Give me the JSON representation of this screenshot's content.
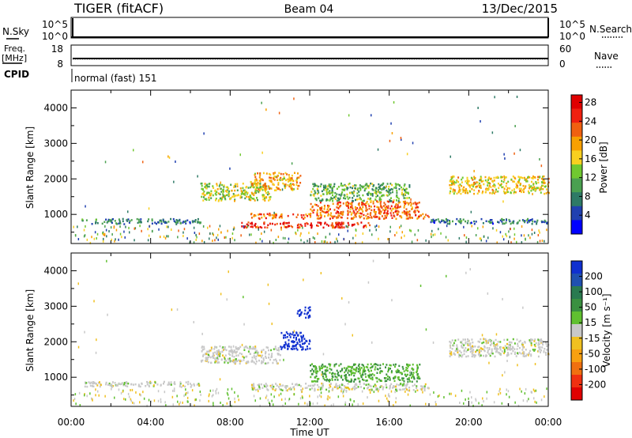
{
  "header": {
    "left": "TIGER (fitACF)",
    "center": "Beam 04",
    "right": "13/Dec/2015"
  },
  "params": {
    "nsky_label": "N.Sky",
    "freq_label_1": "Freq.",
    "freq_label_2": "[MHz]",
    "cpid_label": "CPID",
    "nsearch_label": "N.Search",
    "nave_label": "Nave",
    "nsky_ticks": [
      "10^5",
      "10^0"
    ],
    "nsearch_ticks": [
      "10^5",
      "10^0"
    ],
    "freq_ticks": [
      "18",
      "8"
    ],
    "nave_ticks": [
      "60",
      "0"
    ],
    "cpid_text": "normal (fast) 151"
  },
  "chart_data": [
    {
      "type": "heatmap",
      "title": "",
      "xlabel": "",
      "ylabel": "Slant Range [km]",
      "x_range_hours": [
        0,
        24
      ],
      "ylim": [
        180,
        4500
      ],
      "yticks": [
        1000,
        2000,
        3000,
        4000
      ],
      "colorbar": {
        "label": "Power [dB]",
        "ticks": [
          "4",
          "8",
          "12",
          "16",
          "20",
          "24",
          "28"
        ],
        "colors": [
          "#0000ff",
          "#2040b0",
          "#2e7a66",
          "#4aa050",
          "#70c830",
          "#f8d020",
          "#f8a000",
          "#f06010",
          "#f02010",
          "#e00000"
        ]
      },
      "regions": [
        {
          "t": [
            0.5,
            6.5
          ],
          "r": [
            750,
            900
          ],
          "value": 8
        },
        {
          "t": [
            6.5,
            10.0
          ],
          "r": [
            1400,
            1900
          ],
          "value": 16
        },
        {
          "t": [
            9.0,
            11.5
          ],
          "r": [
            1700,
            2200
          ],
          "value": 20
        },
        {
          "t": [
            9.0,
            18.0
          ],
          "r": [
            900,
            1050
          ],
          "value": 24
        },
        {
          "t": [
            8.5,
            15.0
          ],
          "r": [
            650,
            800
          ],
          "value": 28
        },
        {
          "t": [
            12.0,
            17.5
          ],
          "r": [
            1050,
            1400
          ],
          "value": 24
        },
        {
          "t": [
            12.0,
            17.0
          ],
          "r": [
            1400,
            1900
          ],
          "value": 12
        },
        {
          "t": [
            19.0,
            24.0
          ],
          "r": [
            1600,
            2100
          ],
          "value": 18
        },
        {
          "t": [
            18.0,
            24.0
          ],
          "r": [
            750,
            900
          ],
          "value": 8
        }
      ]
    },
    {
      "type": "heatmap",
      "title": "",
      "xlabel": "Time UT",
      "ylabel": "Slant Range [km]",
      "x_range_hours": [
        0,
        24
      ],
      "ylim": [
        180,
        4500
      ],
      "yticks": [
        1000,
        2000,
        3000,
        4000
      ],
      "xticks": [
        "00:00",
        "04:00",
        "08:00",
        "12:00",
        "16:00",
        "20:00",
        "00:00"
      ],
      "colorbar": {
        "label": "Velocity [m s⁻¹]",
        "ticks": [
          "200",
          "100",
          "50",
          "15",
          "-15",
          "-50",
          "-100",
          "-200"
        ],
        "colors": [
          "#1030d0",
          "#2050b0",
          "#2a7a50",
          "#3a9040",
          "#60c030",
          "#c8c8c8",
          "#f0c020",
          "#f8a010",
          "#f07010",
          "#f03010",
          "#e00000"
        ]
      },
      "regions": [
        {
          "t": [
            0.5,
            6.5
          ],
          "r": [
            750,
            900
          ],
          "value": 0
        },
        {
          "t": [
            6.5,
            10.5
          ],
          "r": [
            1400,
            1900
          ],
          "value": 0
        },
        {
          "t": [
            10.5,
            12.0
          ],
          "r": [
            1800,
            2300
          ],
          "value": 180
        },
        {
          "t": [
            11.3,
            12.0
          ],
          "r": [
            2700,
            3000
          ],
          "value": 200
        },
        {
          "t": [
            12.0,
            17.5
          ],
          "r": [
            900,
            1400
          ],
          "value": 40
        },
        {
          "t": [
            9.0,
            15.0
          ],
          "r": [
            650,
            850
          ],
          "value": 0
        },
        {
          "t": [
            15.0,
            18.0
          ],
          "r": [
            650,
            850
          ],
          "value": 0
        },
        {
          "t": [
            19.0,
            24.0
          ],
          "r": [
            1600,
            2100
          ],
          "value": 0
        }
      ]
    }
  ]
}
